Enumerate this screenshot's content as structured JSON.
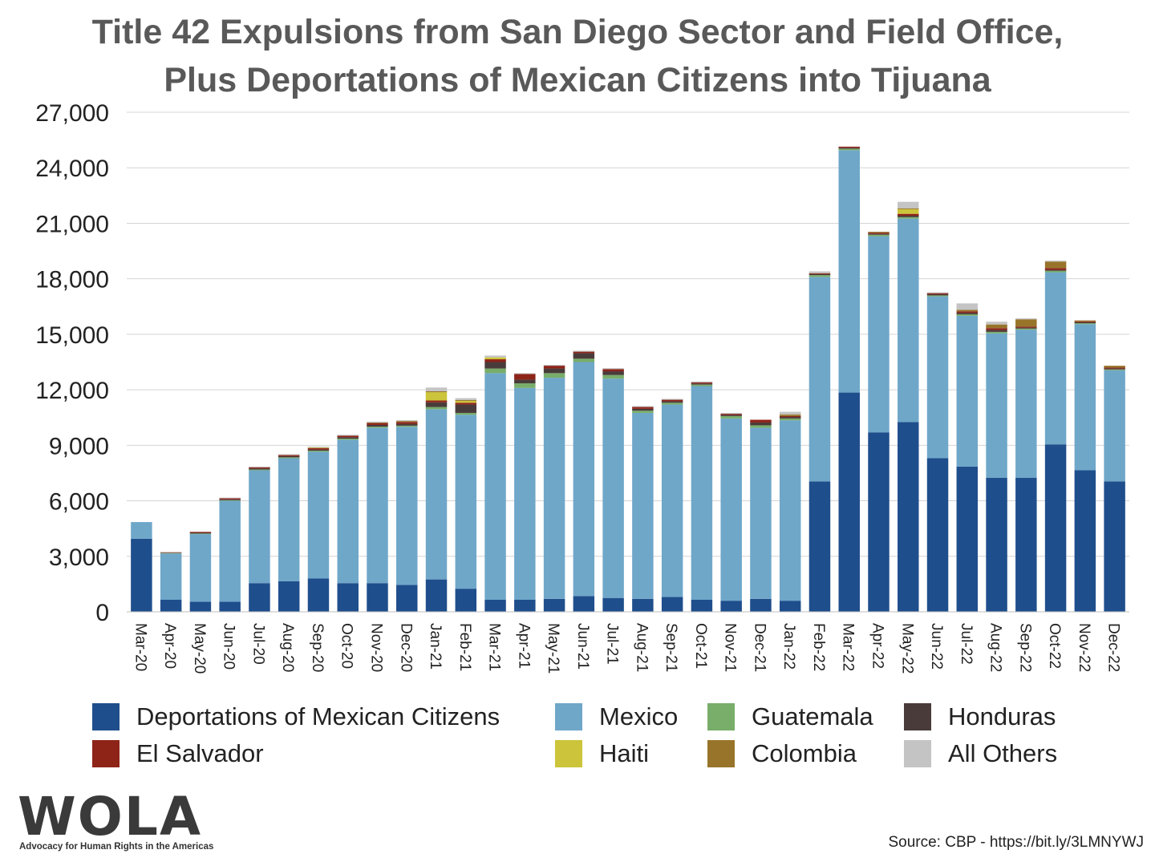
{
  "chart_data": {
    "type": "bar",
    "stacked": true,
    "title_lines": [
      "Title 42 Expulsions from San Diego Sector and Field Office,",
      "Plus Deportations of Mexican Citizens into Tijuana"
    ],
    "xlabel": "",
    "ylabel": "",
    "ylim": [
      0,
      27000
    ],
    "yticks": [
      0,
      3000,
      6000,
      9000,
      12000,
      15000,
      18000,
      21000,
      24000,
      27000
    ],
    "ytick_labels": [
      "0",
      "3,000",
      "6,000",
      "9,000",
      "12,000",
      "15,000",
      "18,000",
      "21,000",
      "24,000",
      "27,000"
    ],
    "grid": true,
    "legend_position": "bottom",
    "categories": [
      "Mar-20",
      "Apr-20",
      "May-20",
      "Jun-20",
      "Jul-20",
      "Aug-20",
      "Sep-20",
      "Oct-20",
      "Nov-20",
      "Dec-20",
      "Jan-21",
      "Feb-21",
      "Mar-21",
      "Apr-21",
      "May-21",
      "Jun-21",
      "Jul-21",
      "Aug-21",
      "Sep-21",
      "Oct-21",
      "Nov-21",
      "Dec-21",
      "Jan-22",
      "Feb-22",
      "Mar-22",
      "Apr-22",
      "May-22",
      "Jun-22",
      "Jul-22",
      "Aug-22",
      "Sep-22",
      "Oct-22",
      "Nov-22",
      "Dec-22"
    ],
    "series": [
      {
        "name": "Deportations of Mexican Citizens",
        "color": "#1f4e8c",
        "values": [
          3950,
          650,
          550,
          550,
          1550,
          1650,
          1800,
          1550,
          1550,
          1450,
          1750,
          1250,
          650,
          650,
          700,
          850,
          750,
          700,
          800,
          650,
          600,
          700,
          600,
          7050,
          11850,
          9700,
          10250,
          8300,
          7850,
          7250,
          7250,
          9050,
          7650,
          7050
        ]
      },
      {
        "name": "Mexico",
        "color": "#6fa7c9",
        "values": [
          900,
          2500,
          3650,
          5450,
          6100,
          6650,
          6850,
          7750,
          8400,
          8550,
          9200,
          9400,
          12250,
          11450,
          11950,
          12650,
          11850,
          10050,
          10400,
          11550,
          9850,
          9250,
          9750,
          11050,
          13100,
          10600,
          11000,
          8750,
          8150,
          7800,
          8000,
          9300,
          7900,
          6000
        ]
      },
      {
        "name": "Guatemala",
        "color": "#78ad6a",
        "values": [
          0,
          30,
          30,
          30,
          40,
          50,
          60,
          60,
          60,
          60,
          120,
          100,
          250,
          250,
          250,
          180,
          200,
          120,
          100,
          80,
          130,
          130,
          100,
          100,
          80,
          80,
          80,
          50,
          80,
          80,
          60,
          80,
          50,
          50
        ]
      },
      {
        "name": "Honduras",
        "color": "#4a3b3b",
        "values": [
          0,
          20,
          40,
          50,
          60,
          60,
          60,
          80,
          90,
          100,
          250,
          450,
          350,
          200,
          250,
          300,
          200,
          100,
          80,
          60,
          60,
          150,
          80,
          50,
          50,
          50,
          80,
          60,
          80,
          100,
          50,
          50,
          50,
          50
        ]
      },
      {
        "name": "El Salvador",
        "color": "#8e2318",
        "values": [
          0,
          20,
          50,
          60,
          60,
          60,
          80,
          80,
          100,
          100,
          100,
          100,
          150,
          300,
          150,
          80,
          120,
          100,
          80,
          60,
          60,
          150,
          50,
          50,
          60,
          60,
          100,
          60,
          80,
          100,
          50,
          100,
          50,
          50
        ]
      },
      {
        "name": "Haiti",
        "color": "#ccc43a",
        "values": [
          0,
          0,
          0,
          0,
          0,
          0,
          30,
          0,
          0,
          0,
          450,
          100,
          100,
          0,
          0,
          0,
          0,
          0,
          0,
          0,
          0,
          0,
          0,
          0,
          0,
          0,
          250,
          0,
          0,
          0,
          0,
          0,
          0,
          0
        ]
      },
      {
        "name": "Colombia",
        "color": "#98742a",
        "values": [
          0,
          0,
          0,
          0,
          0,
          0,
          0,
          0,
          30,
          50,
          50,
          50,
          0,
          0,
          0,
          0,
          0,
          0,
          0,
          0,
          0,
          0,
          80,
          0,
          0,
          50,
          50,
          0,
          80,
          200,
          400,
          350,
          50,
          100
        ]
      },
      {
        "name": "All Others",
        "color": "#c4c4c4",
        "values": [
          0,
          0,
          0,
          30,
          40,
          50,
          50,
          50,
          50,
          50,
          200,
          100,
          100,
          50,
          50,
          50,
          50,
          50,
          50,
          50,
          50,
          0,
          150,
          100,
          0,
          0,
          350,
          50,
          350,
          150,
          50,
          50,
          0,
          0
        ]
      }
    ]
  },
  "legend": [
    {
      "label": "Deportations of Mexican Citizens",
      "color": "#1f4e8c"
    },
    {
      "label": "Mexico",
      "color": "#6fa7c9"
    },
    {
      "label": "Guatemala",
      "color": "#78ad6a"
    },
    {
      "label": "Honduras",
      "color": "#4a3b3b"
    },
    {
      "label": "El Salvador",
      "color": "#8e2318"
    },
    {
      "label": "Haiti",
      "color": "#ccc43a"
    },
    {
      "label": "Colombia",
      "color": "#98742a"
    },
    {
      "label": "All Others",
      "color": "#c4c4c4"
    }
  ],
  "logo": {
    "word": "WOLA",
    "tagline": "Advocacy for Human Rights in the Americas"
  },
  "source": "Source: CBP - https://bit.ly/3LMNYWJ"
}
